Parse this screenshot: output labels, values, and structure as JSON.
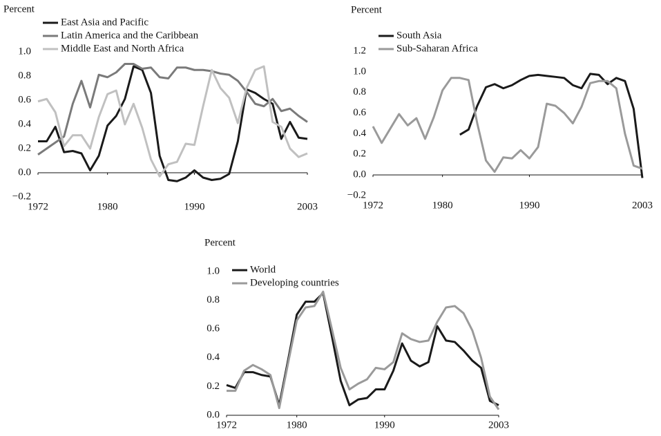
{
  "chart_data": [
    {
      "type": "line",
      "ylabel": "Percent",
      "x": [
        1972,
        1973,
        1974,
        1975,
        1976,
        1977,
        1978,
        1979,
        1980,
        1981,
        1982,
        1983,
        1984,
        1985,
        1986,
        1987,
        1988,
        1989,
        1990,
        1991,
        1992,
        1993,
        1994,
        1995,
        1996,
        1997,
        1998,
        1999,
        2000,
        2001,
        2002,
        2003
      ],
      "xlim": [
        1972,
        2003
      ],
      "xticks": [
        1972,
        1980,
        1990,
        2003
      ],
      "ylim": [
        -0.2,
        1
      ],
      "yticks": [
        {
          "value": -0.2,
          "label": "−0.2"
        },
        {
          "value": 0,
          "label": "0.0"
        },
        0.2,
        0.4,
        0.6,
        0.8,
        {
          "value": 1,
          "label": "1.0"
        }
      ],
      "legend": "top-left",
      "series": [
        {
          "name": "East Asia and Pacific",
          "color": "#1a1a1a",
          "values": [
            0.26,
            0.26,
            0.38,
            0.17,
            0.18,
            0.16,
            0.02,
            0.14,
            0.39,
            0.47,
            0.61,
            0.88,
            0.85,
            0.66,
            0.14,
            -0.06,
            -0.07,
            -0.04,
            0.02,
            -0.04,
            -0.06,
            -0.05,
            -0.01,
            0.26,
            0.69,
            0.66,
            0.61,
            0.57,
            0.28,
            0.42,
            0.29,
            0.28
          ]
        },
        {
          "name": "Latin America and the Caribbean",
          "color": "#7a7a7a",
          "values": [
            0.15,
            0.2,
            0.25,
            0.3,
            0.57,
            0.76,
            0.54,
            0.81,
            0.79,
            0.83,
            0.9,
            0.9,
            0.86,
            0.87,
            0.79,
            0.78,
            0.87,
            0.87,
            0.85,
            0.85,
            0.84,
            0.82,
            0.81,
            0.76,
            0.67,
            0.57,
            0.55,
            0.61,
            0.51,
            0.53,
            0.47,
            0.42
          ]
        },
        {
          "name": "Middle East and North Africa",
          "color": "#c0c0c0",
          "values": [
            0.59,
            0.61,
            0.5,
            0.22,
            0.31,
            0.31,
            0.2,
            0.46,
            0.65,
            0.68,
            0.4,
            0.57,
            0.37,
            0.11,
            -0.03,
            0.07,
            0.09,
            0.24,
            0.23,
            0.55,
            0.85,
            0.7,
            0.62,
            0.41,
            0.7,
            0.85,
            0.88,
            0.42,
            0.38,
            0.2,
            0.13,
            0.16
          ]
        }
      ]
    },
    {
      "type": "line",
      "ylabel": "Percent",
      "x": [
        1972,
        1973,
        1974,
        1975,
        1976,
        1977,
        1978,
        1979,
        1980,
        1981,
        1982,
        1983,
        1984,
        1985,
        1986,
        1987,
        1988,
        1989,
        1990,
        1991,
        1992,
        1993,
        1994,
        1995,
        1996,
        1997,
        1998,
        1999,
        2000,
        2001,
        2002,
        2003
      ],
      "xlim": [
        1972,
        2003
      ],
      "xticks": [
        1972,
        1980,
        1990,
        2003
      ],
      "ylim": [
        -0.2,
        1.2
      ],
      "yticks": [
        {
          "value": -0.2,
          "label": "−0.2"
        },
        {
          "value": 0,
          "label": "0.0"
        },
        0.2,
        0.4,
        0.6,
        0.8,
        {
          "value": 1,
          "label": "1.0"
        },
        1.2
      ],
      "legend": "top-left",
      "series": [
        {
          "name": "South Asia",
          "color": "#1a1a1a",
          "values": [
            null,
            null,
            null,
            null,
            null,
            null,
            null,
            null,
            null,
            null,
            0.39,
            0.44,
            0.67,
            0.85,
            0.88,
            0.84,
            0.87,
            0.92,
            0.96,
            0.97,
            0.96,
            0.95,
            0.94,
            0.87,
            0.84,
            0.98,
            0.97,
            0.88,
            0.94,
            0.91,
            0.64,
            -0.03
          ]
        },
        {
          "name": "Sub-Saharan Africa",
          "color": "#9a9a9a",
          "values": [
            0.47,
            0.31,
            0.45,
            0.59,
            0.48,
            0.55,
            0.35,
            0.56,
            0.82,
            0.94,
            0.94,
            0.92,
            0.5,
            0.14,
            0.03,
            0.17,
            0.16,
            0.24,
            0.16,
            0.27,
            0.69,
            0.67,
            0.6,
            0.5,
            0.66,
            0.89,
            0.91,
            0.91,
            0.84,
            0.4,
            0.09,
            0.06
          ]
        }
      ]
    },
    {
      "type": "line",
      "ylabel": "Percent",
      "x": [
        1972,
        1973,
        1974,
        1975,
        1976,
        1977,
        1978,
        1979,
        1980,
        1981,
        1982,
        1983,
        1984,
        1985,
        1986,
        1987,
        1988,
        1989,
        1990,
        1991,
        1992,
        1993,
        1994,
        1995,
        1996,
        1997,
        1998,
        1999,
        2000,
        2001,
        2002,
        2003
      ],
      "xlim": [
        1972,
        2003
      ],
      "xticks": [
        1972,
        1980,
        1990,
        2003
      ],
      "ylim": [
        0,
        1
      ],
      "yticks": [
        {
          "value": 0,
          "label": "0.0"
        },
        0.2,
        0.4,
        0.6,
        0.8,
        {
          "value": 1,
          "label": "1.0"
        }
      ],
      "legend": "top-left",
      "series": [
        {
          "name": "World",
          "color": "#1a1a1a",
          "values": [
            0.21,
            0.19,
            0.3,
            0.3,
            0.28,
            0.27,
            0.07,
            0.38,
            0.7,
            0.79,
            0.79,
            0.85,
            0.55,
            0.24,
            0.07,
            0.11,
            0.12,
            0.18,
            0.18,
            0.31,
            0.5,
            0.38,
            0.34,
            0.37,
            0.62,
            0.52,
            0.51,
            0.45,
            0.38,
            0.33,
            0.1,
            0.07
          ]
        },
        {
          "name": "Developing countries",
          "color": "#9a9a9a",
          "values": [
            0.17,
            0.17,
            0.31,
            0.35,
            0.32,
            0.28,
            0.05,
            0.36,
            0.66,
            0.75,
            0.76,
            0.86,
            0.6,
            0.33,
            0.18,
            0.22,
            0.25,
            0.33,
            0.32,
            0.37,
            0.57,
            0.53,
            0.51,
            0.52,
            0.65,
            0.75,
            0.76,
            0.71,
            0.59,
            0.4,
            0.13,
            0.04
          ]
        }
      ]
    }
  ]
}
